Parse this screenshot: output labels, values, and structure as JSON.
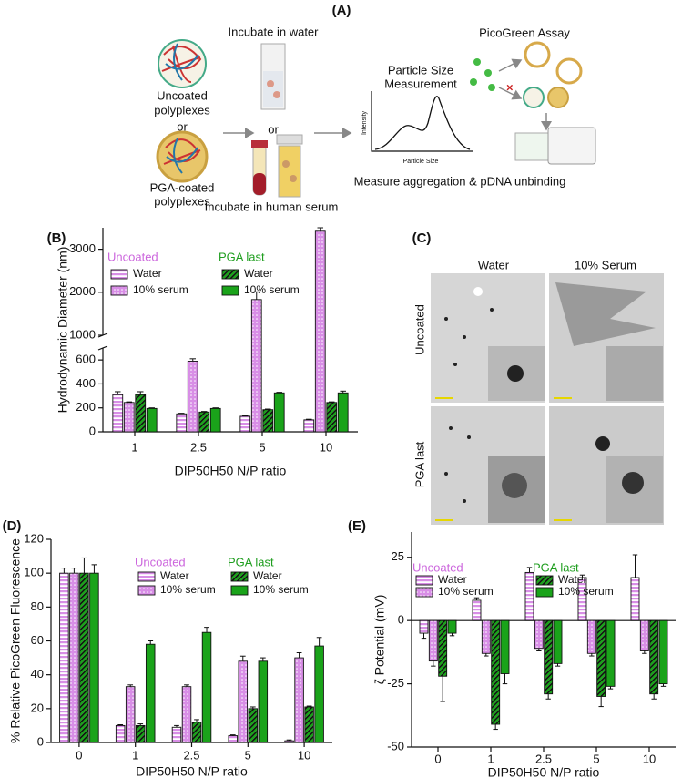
{
  "panel_a": {
    "label": "(A)",
    "uncoated": [
      "Uncoated",
      "polyplexes"
    ],
    "or_left": "or",
    "coated": [
      "PGA-coated",
      "polyplexes"
    ],
    "water": "Incubate in water",
    "or_mid": "or",
    "serum": "Incubate in human serum",
    "size": [
      "Particle Size",
      "Measurement"
    ],
    "size_y": "Intensity",
    "size_x": "Particle Size",
    "assay": "PicoGreen Assay",
    "measure": "Measure aggregation & pDNA unbinding"
  },
  "panel_c": {
    "label": "(C)",
    "columns": [
      "Water",
      "10% Serum"
    ],
    "rows": [
      "Uncoated",
      "PGA last"
    ]
  },
  "chart_data": [
    {
      "type": "bar",
      "label": "(B)",
      "x_label": "DIP50H50 N/P ratio",
      "y_label": "Hydrodynamic Diameter (nm)",
      "categories": [
        "1",
        "2.5",
        "5",
        "10"
      ],
      "ylim": [
        0,
        3500
      ],
      "axis_break": [
        700,
        1000
      ],
      "yticks": [
        0,
        200,
        400,
        600,
        1000,
        2000,
        3000
      ],
      "legend_groups": [
        {
          "title": "Uncoated",
          "color": "#cc66dd"
        },
        {
          "title": "PGA last",
          "color": "#1f9e1f"
        }
      ],
      "series": [
        {
          "name": "Water",
          "group": 0,
          "pattern": "horizontal",
          "color": "#d88ee6",
          "values": [
            310,
            150,
            130,
            100
          ],
          "errors": [
            25,
            5,
            5,
            5
          ]
        },
        {
          "name": "10% serum",
          "group": 0,
          "pattern": "dots",
          "color": "#d88ee6",
          "values": [
            245,
            590,
            1830,
            3420
          ],
          "errors": [
            5,
            20,
            180,
            80
          ]
        },
        {
          "name": "Water",
          "group": 1,
          "pattern": "hatch",
          "color": "#1aa31a",
          "values": [
            310,
            165,
            185,
            245
          ],
          "errors": [
            25,
            5,
            5,
            5
          ]
        },
        {
          "name": "10% serum",
          "group": 1,
          "pattern": "solid",
          "color": "#1aa31a",
          "values": [
            195,
            195,
            325,
            325
          ],
          "errors": [
            5,
            5,
            5,
            15
          ]
        }
      ]
    },
    {
      "type": "bar",
      "label": "(D)",
      "x_label": "DIP50H50 N/P ratio",
      "y_label": "% Relative PicoGreen Fluorescence",
      "categories": [
        "0",
        "1",
        "2.5",
        "5",
        "10"
      ],
      "ylim": [
        0,
        120
      ],
      "yticks": [
        0,
        20,
        40,
        60,
        80,
        100,
        120
      ],
      "legend_groups": [
        {
          "title": "Uncoated",
          "color": "#cc66dd"
        },
        {
          "title": "PGA last",
          "color": "#1f9e1f"
        }
      ],
      "series": [
        {
          "name": "Water",
          "group": 0,
          "pattern": "horizontal",
          "color": "#d88ee6",
          "values": [
            100,
            10,
            9,
            4,
            1
          ],
          "errors": [
            3,
            0.5,
            1,
            0.5,
            0.5
          ]
        },
        {
          "name": "10% serum",
          "group": 0,
          "pattern": "dots",
          "color": "#d88ee6",
          "values": [
            100,
            33,
            33,
            48,
            50
          ],
          "errors": [
            3,
            1,
            1,
            3,
            3
          ]
        },
        {
          "name": "Water",
          "group": 1,
          "pattern": "hatch",
          "color": "#1aa31a",
          "values": [
            100,
            10,
            12,
            20,
            21
          ],
          "errors": [
            9,
            1,
            1.5,
            1,
            0.5
          ]
        },
        {
          "name": "10% serum",
          "group": 1,
          "pattern": "solid",
          "color": "#1aa31a",
          "values": [
            100,
            58,
            65,
            48,
            57
          ],
          "errors": [
            5,
            2,
            3,
            2,
            5
          ]
        }
      ]
    },
    {
      "type": "bar",
      "label": "(E)",
      "x_label": "DIP50H50 N/P ratio",
      "y_label": "ζ Potential (mV)",
      "categories": [
        "0",
        "1",
        "2.5",
        "5",
        "10"
      ],
      "ylim": [
        -50,
        35
      ],
      "yticks": [
        -50,
        -25,
        0,
        25
      ],
      "legend_groups": [
        {
          "title": "Uncoated",
          "color": "#cc66dd"
        },
        {
          "title": "PGA last",
          "color": "#1f9e1f"
        }
      ],
      "series": [
        {
          "name": "Water",
          "group": 0,
          "pattern": "horizontal",
          "color": "#d88ee6",
          "values": [
            -5,
            8,
            19,
            17,
            17
          ],
          "errors": [
            2,
            1,
            2,
            1,
            9
          ]
        },
        {
          "name": "10% serum",
          "group": 0,
          "pattern": "dots",
          "color": "#d88ee6",
          "values": [
            -16,
            -13,
            -11,
            -13,
            -12
          ],
          "errors": [
            2,
            1,
            1,
            1,
            1
          ]
        },
        {
          "name": "Water",
          "group": 1,
          "pattern": "hatch",
          "color": "#1aa31a",
          "values": [
            -22,
            -41,
            -29,
            -30,
            -29
          ],
          "errors": [
            10,
            2,
            2,
            4,
            2
          ]
        },
        {
          "name": "10% serum",
          "group": 1,
          "pattern": "solid",
          "color": "#1aa31a",
          "values": [
            -5,
            -21,
            -17,
            -26,
            -25
          ],
          "errors": [
            1,
            4,
            1,
            1,
            1
          ]
        }
      ]
    }
  ]
}
